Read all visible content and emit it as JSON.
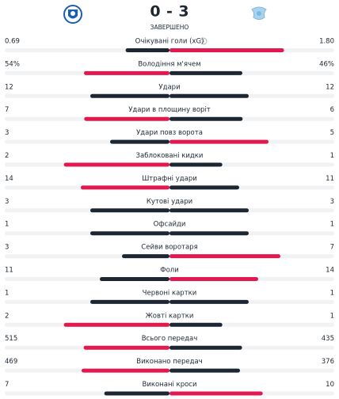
{
  "header": {
    "home_score": "0",
    "separator": "-",
    "away_score": "3",
    "status": "ЗАВЕРШЕНО"
  },
  "stats": [
    {
      "label": "Очікувані голи (xG)",
      "home": "0.69",
      "away": "1.80"
    },
    {
      "label": "Володіння м'ячем",
      "home": "54%",
      "away": "46%"
    },
    {
      "label": "Удари",
      "home": "12",
      "away": "12"
    },
    {
      "label": "Удари в площину воріт",
      "home": "7",
      "away": "6"
    },
    {
      "label": "Удари повз ворота",
      "home": "3",
      "away": "5"
    },
    {
      "label": "Заблоковані кидки",
      "home": "2",
      "away": "1"
    },
    {
      "label": "Штрафні удари",
      "home": "14",
      "away": "11"
    },
    {
      "label": "Кутові удари",
      "home": "3",
      "away": "3"
    },
    {
      "label": "Офсайди",
      "home": "1",
      "away": "1"
    },
    {
      "label": "Сейви воротаря",
      "home": "3",
      "away": "7"
    },
    {
      "label": "Фоли",
      "home": "11",
      "away": "14"
    },
    {
      "label": "Червоні картки",
      "home": "1",
      "away": "1"
    },
    {
      "label": "Жовті картки",
      "home": "2",
      "away": "1"
    },
    {
      "label": "Всього передач",
      "home": "515",
      "away": "435"
    },
    {
      "label": "Виконано передач",
      "home": "469",
      "away": "376"
    },
    {
      "label": "Виконані кроси",
      "home": "7",
      "away": "10"
    }
  ]
}
